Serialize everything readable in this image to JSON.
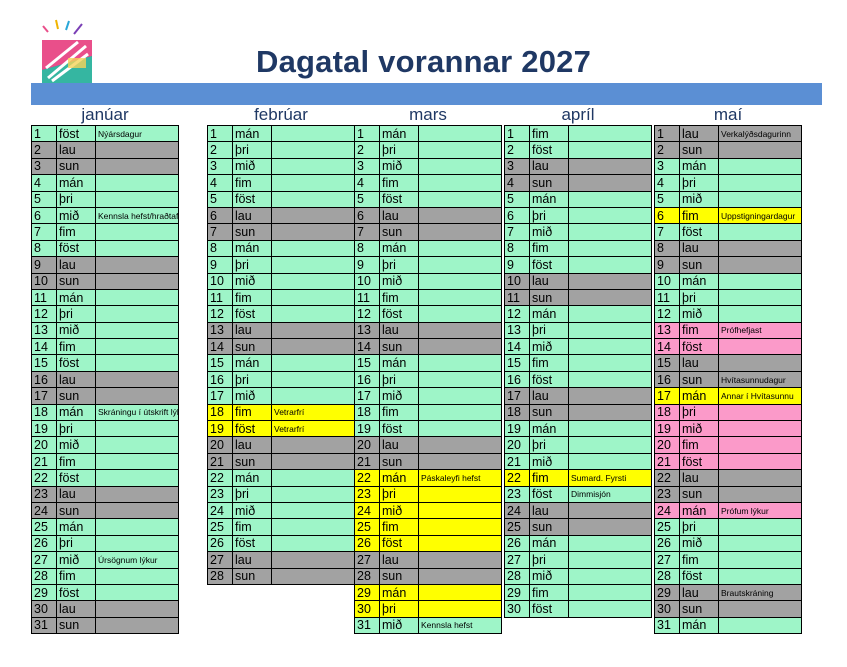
{
  "title": "Dagatal vorannar 2027",
  "colors": {
    "weekday": "#9ef5c8",
    "weekend": "#a2a2a2",
    "holiday": "#ffff00",
    "exam": "#fb9ac9",
    "band": "#5b8fd4",
    "title": "#1f3864"
  },
  "months": [
    {
      "name": "janúar",
      "days": [
        {
          "d": "1",
          "w": "föst",
          "note": "Nýársdagur",
          "type": "g"
        },
        {
          "d": "2",
          "w": "lau",
          "note": "",
          "type": "x"
        },
        {
          "d": "3",
          "w": "sun",
          "note": "",
          "type": "x"
        },
        {
          "d": "4",
          "w": "mán",
          "note": "",
          "type": "g"
        },
        {
          "d": "5",
          "w": "þri",
          "note": "",
          "type": "g"
        },
        {
          "d": "6",
          "w": "mið",
          "note": "Kennsla hefst/hraðtafla",
          "type": "g"
        },
        {
          "d": "7",
          "w": "fim",
          "note": "",
          "type": "g"
        },
        {
          "d": "8",
          "w": "föst",
          "note": "",
          "type": "g"
        },
        {
          "d": "9",
          "w": "lau",
          "note": "",
          "type": "x"
        },
        {
          "d": "10",
          "w": "sun",
          "note": "",
          "type": "x"
        },
        {
          "d": "11",
          "w": "mán",
          "note": "",
          "type": "g"
        },
        {
          "d": "12",
          "w": "þri",
          "note": "",
          "type": "g"
        },
        {
          "d": "13",
          "w": "mið",
          "note": "",
          "type": "g"
        },
        {
          "d": "14",
          "w": "fim",
          "note": "",
          "type": "g"
        },
        {
          "d": "15",
          "w": "föst",
          "note": "",
          "type": "g"
        },
        {
          "d": "16",
          "w": "lau",
          "note": "",
          "type": "x"
        },
        {
          "d": "17",
          "w": "sun",
          "note": "",
          "type": "x"
        },
        {
          "d": "18",
          "w": "mán",
          "note": "Skráningu í útskrift lýkur",
          "type": "g"
        },
        {
          "d": "19",
          "w": "þri",
          "note": "",
          "type": "g"
        },
        {
          "d": "20",
          "w": "mið",
          "note": "",
          "type": "g"
        },
        {
          "d": "21",
          "w": "fim",
          "note": "",
          "type": "g"
        },
        {
          "d": "22",
          "w": "föst",
          "note": "",
          "type": "g"
        },
        {
          "d": "23",
          "w": "lau",
          "note": "",
          "type": "x"
        },
        {
          "d": "24",
          "w": "sun",
          "note": "",
          "type": "x"
        },
        {
          "d": "25",
          "w": "mán",
          "note": "",
          "type": "g"
        },
        {
          "d": "26",
          "w": "þri",
          "note": "",
          "type": "g"
        },
        {
          "d": "27",
          "w": "mið",
          "note": "Úrsögnum lýkur",
          "type": "g"
        },
        {
          "d": "28",
          "w": "fim",
          "note": "",
          "type": "g"
        },
        {
          "d": "29",
          "w": "föst",
          "note": "",
          "type": "g"
        },
        {
          "d": "30",
          "w": "lau",
          "note": "",
          "type": "x"
        },
        {
          "d": "31",
          "w": "sun",
          "note": "",
          "type": "x"
        }
      ]
    },
    {
      "name": "febrúar",
      "days": [
        {
          "d": "1",
          "w": "mán",
          "note": "",
          "type": "g"
        },
        {
          "d": "2",
          "w": "þri",
          "note": "",
          "type": "g"
        },
        {
          "d": "3",
          "w": "mið",
          "note": "",
          "type": "g"
        },
        {
          "d": "4",
          "w": "fim",
          "note": "",
          "type": "g"
        },
        {
          "d": "5",
          "w": "föst",
          "note": "",
          "type": "g"
        },
        {
          "d": "6",
          "w": "lau",
          "note": "",
          "type": "x"
        },
        {
          "d": "7",
          "w": "sun",
          "note": "",
          "type": "x"
        },
        {
          "d": "8",
          "w": "mán",
          "note": "",
          "type": "g"
        },
        {
          "d": "9",
          "w": "þri",
          "note": "",
          "type": "g"
        },
        {
          "d": "10",
          "w": "mið",
          "note": "",
          "type": "g"
        },
        {
          "d": "11",
          "w": "fim",
          "note": "",
          "type": "g"
        },
        {
          "d": "12",
          "w": "föst",
          "note": "",
          "type": "g"
        },
        {
          "d": "13",
          "w": "lau",
          "note": "",
          "type": "x"
        },
        {
          "d": "14",
          "w": "sun",
          "note": "",
          "type": "x"
        },
        {
          "d": "15",
          "w": "mán",
          "note": "",
          "type": "g"
        },
        {
          "d": "16",
          "w": "þri",
          "note": "",
          "type": "g"
        },
        {
          "d": "17",
          "w": "mið",
          "note": "",
          "type": "g"
        },
        {
          "d": "18",
          "w": "fim",
          "note": "Vetrarfrí",
          "type": "y"
        },
        {
          "d": "19",
          "w": "föst",
          "note": "Vetrarfrí",
          "type": "y"
        },
        {
          "d": "20",
          "w": "lau",
          "note": "",
          "type": "x"
        },
        {
          "d": "21",
          "w": "sun",
          "note": "",
          "type": "x"
        },
        {
          "d": "22",
          "w": "mán",
          "note": "",
          "type": "g"
        },
        {
          "d": "23",
          "w": "þri",
          "note": "",
          "type": "g"
        },
        {
          "d": "24",
          "w": "mið",
          "note": "",
          "type": "g"
        },
        {
          "d": "25",
          "w": "fim",
          "note": "",
          "type": "g"
        },
        {
          "d": "26",
          "w": "föst",
          "note": "",
          "type": "g"
        },
        {
          "d": "27",
          "w": "lau",
          "note": "",
          "type": "x"
        },
        {
          "d": "28",
          "w": "sun",
          "note": "",
          "type": "x"
        }
      ]
    },
    {
      "name": "mars",
      "days": [
        {
          "d": "1",
          "w": "mán",
          "note": "",
          "type": "g"
        },
        {
          "d": "2",
          "w": "þri",
          "note": "",
          "type": "g"
        },
        {
          "d": "3",
          "w": "mið",
          "note": "",
          "type": "g"
        },
        {
          "d": "4",
          "w": "fim",
          "note": "",
          "type": "g"
        },
        {
          "d": "5",
          "w": "föst",
          "note": "",
          "type": "g"
        },
        {
          "d": "6",
          "w": "lau",
          "note": "",
          "type": "x"
        },
        {
          "d": "7",
          "w": "sun",
          "note": "",
          "type": "x"
        },
        {
          "d": "8",
          "w": "mán",
          "note": "",
          "type": "g"
        },
        {
          "d": "9",
          "w": "þri",
          "note": "",
          "type": "g"
        },
        {
          "d": "10",
          "w": "mið",
          "note": "",
          "type": "g"
        },
        {
          "d": "11",
          "w": "fim",
          "note": "",
          "type": "g"
        },
        {
          "d": "12",
          "w": "föst",
          "note": "",
          "type": "g"
        },
        {
          "d": "13",
          "w": "lau",
          "note": "",
          "type": "x"
        },
        {
          "d": "14",
          "w": "sun",
          "note": "",
          "type": "x"
        },
        {
          "d": "15",
          "w": "mán",
          "note": "",
          "type": "g"
        },
        {
          "d": "16",
          "w": "þri",
          "note": "",
          "type": "g"
        },
        {
          "d": "17",
          "w": "mið",
          "note": "",
          "type": "g"
        },
        {
          "d": "18",
          "w": "fim",
          "note": "",
          "type": "g"
        },
        {
          "d": "19",
          "w": "föst",
          "note": "",
          "type": "g"
        },
        {
          "d": "20",
          "w": "lau",
          "note": "",
          "type": "x"
        },
        {
          "d": "21",
          "w": "sun",
          "note": "",
          "type": "x"
        },
        {
          "d": "22",
          "w": "mán",
          "note": "Páskaleyfi hefst",
          "type": "y"
        },
        {
          "d": "23",
          "w": "þri",
          "note": "",
          "type": "y"
        },
        {
          "d": "24",
          "w": "mið",
          "note": "",
          "type": "y"
        },
        {
          "d": "25",
          "w": "fim",
          "note": "",
          "type": "y"
        },
        {
          "d": "26",
          "w": "föst",
          "note": "",
          "type": "y"
        },
        {
          "d": "27",
          "w": "lau",
          "note": "",
          "type": "x"
        },
        {
          "d": "28",
          "w": "sun",
          "note": "",
          "type": "x"
        },
        {
          "d": "29",
          "w": "mán",
          "note": "",
          "type": "y"
        },
        {
          "d": "30",
          "w": "þri",
          "note": "",
          "type": "y"
        },
        {
          "d": "31",
          "w": "mið",
          "note": "Kennsla hefst",
          "type": "g"
        }
      ]
    },
    {
      "name": "apríl",
      "days": [
        {
          "d": "1",
          "w": "fim",
          "note": "",
          "type": "g"
        },
        {
          "d": "2",
          "w": "föst",
          "note": "",
          "type": "g"
        },
        {
          "d": "3",
          "w": "lau",
          "note": "",
          "type": "x"
        },
        {
          "d": "4",
          "w": "sun",
          "note": "",
          "type": "x"
        },
        {
          "d": "5",
          "w": "mán",
          "note": "",
          "type": "g"
        },
        {
          "d": "6",
          "w": "þri",
          "note": "",
          "type": "g"
        },
        {
          "d": "7",
          "w": "mið",
          "note": "",
          "type": "g"
        },
        {
          "d": "8",
          "w": "fim",
          "note": "",
          "type": "g"
        },
        {
          "d": "9",
          "w": "föst",
          "note": "",
          "type": "g"
        },
        {
          "d": "10",
          "w": "lau",
          "note": "",
          "type": "x"
        },
        {
          "d": "11",
          "w": "sun",
          "note": "",
          "type": "x"
        },
        {
          "d": "12",
          "w": "mán",
          "note": "",
          "type": "g"
        },
        {
          "d": "13",
          "w": "þri",
          "note": "",
          "type": "g"
        },
        {
          "d": "14",
          "w": "mið",
          "note": "",
          "type": "g"
        },
        {
          "d": "15",
          "w": "fim",
          "note": "",
          "type": "g"
        },
        {
          "d": "16",
          "w": "föst",
          "note": "",
          "type": "g"
        },
        {
          "d": "17",
          "w": "lau",
          "note": "",
          "type": "x"
        },
        {
          "d": "18",
          "w": "sun",
          "note": "",
          "type": "x"
        },
        {
          "d": "19",
          "w": "mán",
          "note": "",
          "type": "g"
        },
        {
          "d": "20",
          "w": "þri",
          "note": "",
          "type": "g"
        },
        {
          "d": "21",
          "w": "mið",
          "note": "",
          "type": "g"
        },
        {
          "d": "22",
          "w": "fim",
          "note": "Sumard. Fyrsti",
          "type": "y"
        },
        {
          "d": "23",
          "w": "föst",
          "note": "Dimmisjón",
          "type": "g"
        },
        {
          "d": "24",
          "w": "lau",
          "note": "",
          "type": "x"
        },
        {
          "d": "25",
          "w": "sun",
          "note": "",
          "type": "x"
        },
        {
          "d": "26",
          "w": "mán",
          "note": "",
          "type": "g"
        },
        {
          "d": "27",
          "w": "þri",
          "note": "",
          "type": "g"
        },
        {
          "d": "28",
          "w": "mið",
          "note": "",
          "type": "g"
        },
        {
          "d": "29",
          "w": "fim",
          "note": "",
          "type": "g"
        },
        {
          "d": "30",
          "w": "föst",
          "note": "",
          "type": "g"
        }
      ]
    },
    {
      "name": "maí",
      "days": [
        {
          "d": "1",
          "w": "lau",
          "note": "Verkalýðsdagurinn",
          "type": "x"
        },
        {
          "d": "2",
          "w": "sun",
          "note": "",
          "type": "x"
        },
        {
          "d": "3",
          "w": "mán",
          "note": "",
          "type": "g"
        },
        {
          "d": "4",
          "w": "þri",
          "note": "",
          "type": "g"
        },
        {
          "d": "5",
          "w": "mið",
          "note": "",
          "type": "g"
        },
        {
          "d": "6",
          "w": "fim",
          "note": "Uppstigningardagur",
          "type": "y"
        },
        {
          "d": "7",
          "w": "föst",
          "note": "",
          "type": "g"
        },
        {
          "d": "8",
          "w": "lau",
          "note": "",
          "type": "x"
        },
        {
          "d": "9",
          "w": "sun",
          "note": "",
          "type": "x"
        },
        {
          "d": "10",
          "w": "mán",
          "note": "",
          "type": "g"
        },
        {
          "d": "11",
          "w": "þri",
          "note": "",
          "type": "g"
        },
        {
          "d": "12",
          "w": "mið",
          "note": "",
          "type": "g"
        },
        {
          "d": "13",
          "w": "fim",
          "note": "Prófhefjast",
          "type": "p"
        },
        {
          "d": "14",
          "w": "föst",
          "note": "",
          "type": "p"
        },
        {
          "d": "15",
          "w": "lau",
          "note": "",
          "type": "x"
        },
        {
          "d": "16",
          "w": "sun",
          "note": "Hvítasunnudagur",
          "type": "x"
        },
        {
          "d": "17",
          "w": "mán",
          "note": "Annar í Hvítasunnu",
          "type": "y"
        },
        {
          "d": "18",
          "w": "þri",
          "note": "",
          "type": "p"
        },
        {
          "d": "19",
          "w": "mið",
          "note": "",
          "type": "p"
        },
        {
          "d": "20",
          "w": "fim",
          "note": "",
          "type": "p"
        },
        {
          "d": "21",
          "w": "föst",
          "note": "",
          "type": "p"
        },
        {
          "d": "22",
          "w": "lau",
          "note": "",
          "type": "x"
        },
        {
          "d": "23",
          "w": "sun",
          "note": "",
          "type": "x"
        },
        {
          "d": "24",
          "w": "mán",
          "note": "Prófum lýkur",
          "type": "p"
        },
        {
          "d": "25",
          "w": "þri",
          "note": "",
          "type": "g"
        },
        {
          "d": "26",
          "w": "mið",
          "note": "",
          "type": "g"
        },
        {
          "d": "27",
          "w": "fim",
          "note": "",
          "type": "g"
        },
        {
          "d": "28",
          "w": "föst",
          "note": "",
          "type": "g"
        },
        {
          "d": "29",
          "w": "lau",
          "note": "Brautskráning",
          "type": "x"
        },
        {
          "d": "30",
          "w": "sun",
          "note": "",
          "type": "x"
        },
        {
          "d": "31",
          "w": "mán",
          "note": "",
          "type": "g"
        }
      ]
    }
  ]
}
